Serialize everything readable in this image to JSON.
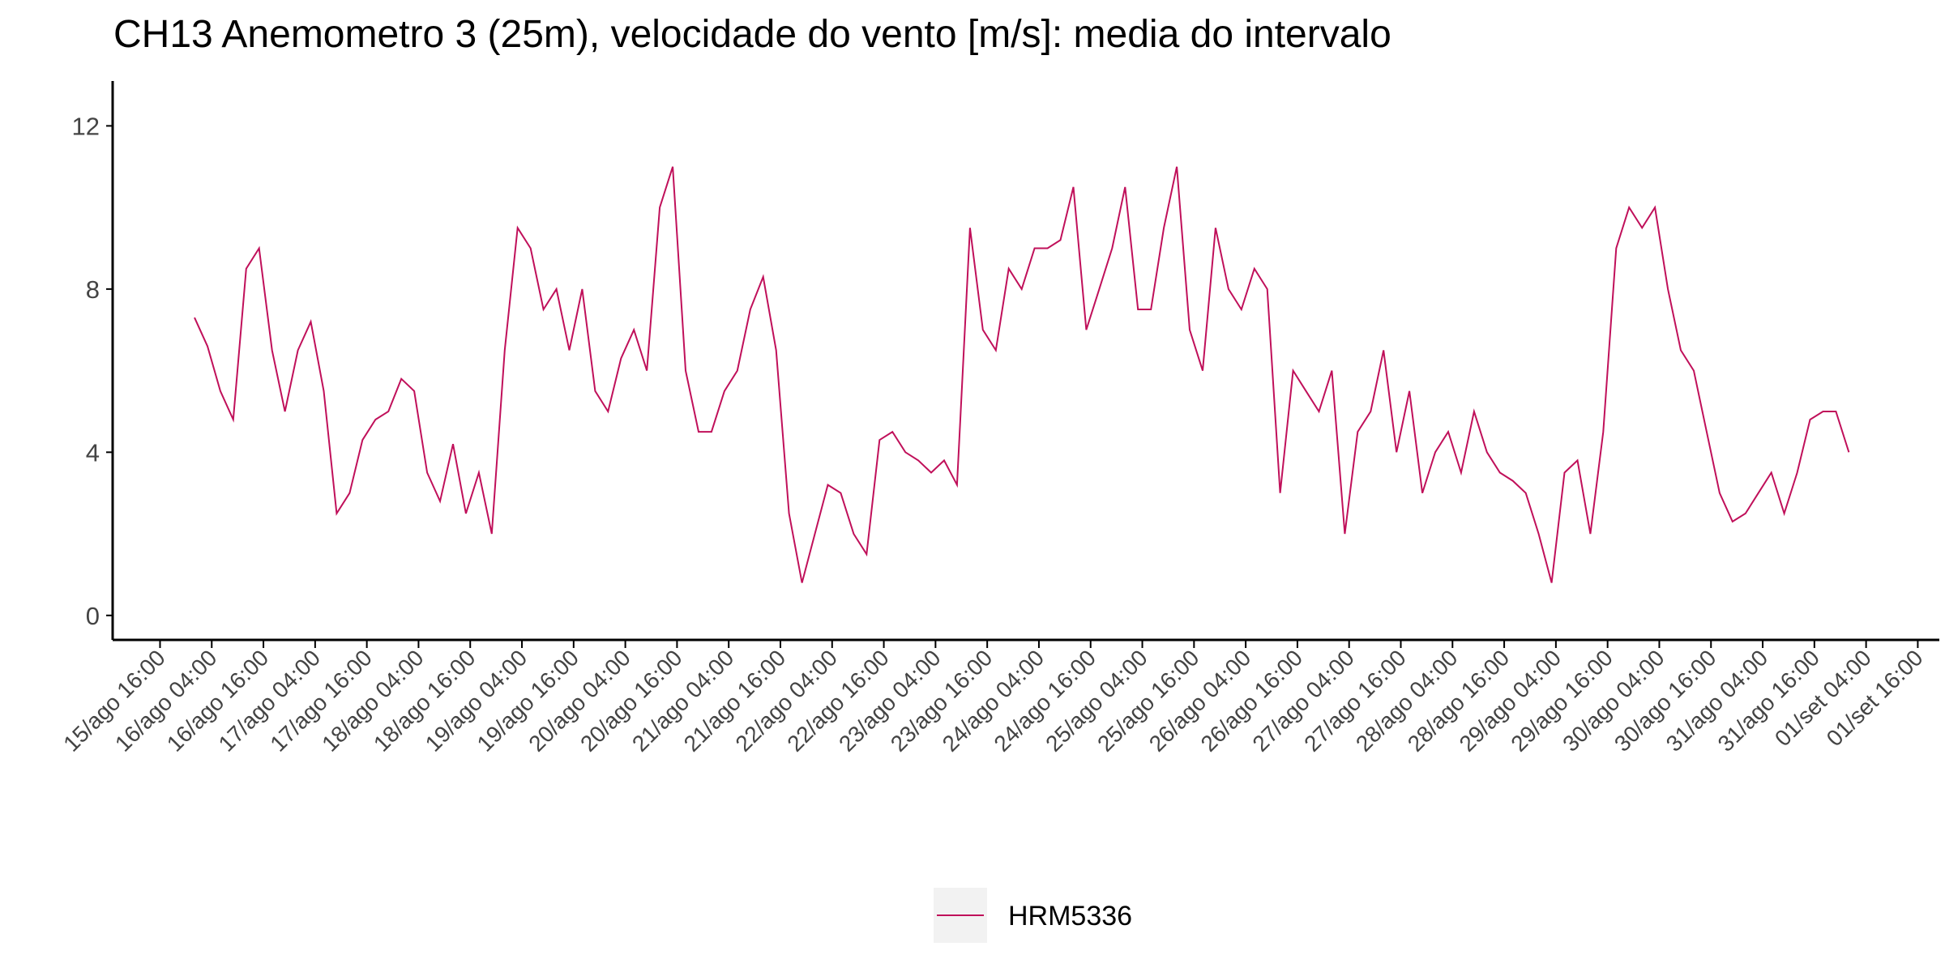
{
  "chart_data": {
    "type": "line",
    "title": "CH13 Anemometro 3 (25m), velocidade do vento [m/s]: media do intervalo",
    "x": [
      "16/ago 00:00",
      "16/ago 03:00",
      "16/ago 06:00",
      "16/ago 09:00",
      "16/ago 12:00",
      "16/ago 15:00",
      "16/ago 18:00",
      "16/ago 21:00",
      "17/ago 00:00",
      "17/ago 03:00",
      "17/ago 06:00",
      "17/ago 09:00",
      "17/ago 12:00",
      "17/ago 15:00",
      "17/ago 18:00",
      "17/ago 21:00",
      "18/ago 00:00",
      "18/ago 03:00",
      "18/ago 06:00",
      "18/ago 09:00",
      "18/ago 12:00",
      "18/ago 15:00",
      "18/ago 18:00",
      "18/ago 21:00",
      "19/ago 00:00",
      "19/ago 03:00",
      "19/ago 06:00",
      "19/ago 09:00",
      "19/ago 12:00",
      "19/ago 15:00",
      "19/ago 18:00",
      "19/ago 21:00",
      "20/ago 00:00",
      "20/ago 03:00",
      "20/ago 06:00",
      "20/ago 09:00",
      "20/ago 12:00",
      "20/ago 15:00",
      "20/ago 18:00",
      "20/ago 21:00",
      "21/ago 00:00",
      "21/ago 03:00",
      "21/ago 06:00",
      "21/ago 09:00",
      "21/ago 12:00",
      "21/ago 15:00",
      "21/ago 18:00",
      "21/ago 21:00",
      "22/ago 00:00",
      "22/ago 03:00",
      "22/ago 06:00",
      "22/ago 09:00",
      "22/ago 12:00",
      "22/ago 15:00",
      "22/ago 18:00",
      "22/ago 21:00",
      "23/ago 00:00",
      "23/ago 03:00",
      "23/ago 06:00",
      "23/ago 09:00",
      "23/ago 12:00",
      "23/ago 15:00",
      "23/ago 18:00",
      "23/ago 21:00",
      "24/ago 00:00",
      "24/ago 03:00",
      "24/ago 06:00",
      "24/ago 09:00",
      "24/ago 12:00",
      "24/ago 15:00",
      "24/ago 18:00",
      "24/ago 21:00",
      "25/ago 00:00",
      "25/ago 03:00",
      "25/ago 06:00",
      "25/ago 09:00",
      "25/ago 12:00",
      "25/ago 15:00",
      "25/ago 18:00",
      "25/ago 21:00",
      "26/ago 00:00",
      "26/ago 03:00",
      "26/ago 06:00",
      "26/ago 09:00",
      "26/ago 12:00",
      "26/ago 15:00",
      "26/ago 18:00",
      "26/ago 21:00",
      "27/ago 00:00",
      "27/ago 03:00",
      "27/ago 06:00",
      "27/ago 09:00",
      "27/ago 12:00",
      "27/ago 15:00",
      "27/ago 18:00",
      "27/ago 21:00",
      "28/ago 00:00",
      "28/ago 03:00",
      "28/ago 06:00",
      "28/ago 09:00",
      "28/ago 12:00",
      "28/ago 15:00",
      "28/ago 18:00",
      "28/ago 21:00",
      "29/ago 00:00",
      "29/ago 03:00",
      "29/ago 06:00",
      "29/ago 09:00",
      "29/ago 12:00",
      "29/ago 15:00",
      "29/ago 18:00",
      "29/ago 21:00",
      "30/ago 00:00",
      "30/ago 03:00",
      "30/ago 06:00",
      "30/ago 09:00",
      "30/ago 12:00",
      "30/ago 15:00",
      "30/ago 18:00",
      "30/ago 21:00",
      "31/ago 00:00",
      "31/ago 03:00",
      "31/ago 06:00",
      "31/ago 09:00",
      "31/ago 12:00",
      "31/ago 15:00",
      "31/ago 18:00",
      "31/ago 21:00",
      "01/set 00:00"
    ],
    "series": [
      {
        "name": "HRM5336",
        "color": "#c0105a",
        "values": [
          7.3,
          6.6,
          5.5,
          4.8,
          8.5,
          9.0,
          6.5,
          5.0,
          6.5,
          7.2,
          5.5,
          2.5,
          3.0,
          4.3,
          4.8,
          5.0,
          5.8,
          5.5,
          3.5,
          2.8,
          4.2,
          2.5,
          3.5,
          2.0,
          6.5,
          9.5,
          9.0,
          7.5,
          8.0,
          6.5,
          8.0,
          5.5,
          5.0,
          6.3,
          7.0,
          6.0,
          10.0,
          11.0,
          6.0,
          4.5,
          4.5,
          5.5,
          6.0,
          7.5,
          8.3,
          6.5,
          2.5,
          0.8,
          2.0,
          3.2,
          3.0,
          2.0,
          1.5,
          4.3,
          4.5,
          4.0,
          3.8,
          3.5,
          3.8,
          3.2,
          9.5,
          7.0,
          6.5,
          8.5,
          8.0,
          9.0,
          9.0,
          9.2,
          10.5,
          7.0,
          8.0,
          9.0,
          10.5,
          7.5,
          7.5,
          9.5,
          11.0,
          7.0,
          6.0,
          9.5,
          8.0,
          7.5,
          8.5,
          8.0,
          3.0,
          6.0,
          5.5,
          5.0,
          6.0,
          2.0,
          4.5,
          5.0,
          6.5,
          4.0,
          5.5,
          3.0,
          4.0,
          4.5,
          3.5,
          5.0,
          4.0,
          3.5,
          3.3,
          3.0,
          2.0,
          0.8,
          3.5,
          3.8,
          2.0,
          4.5,
          9.0,
          10.0,
          9.5,
          10.0,
          8.0,
          6.5,
          6.0,
          4.5,
          3.0,
          2.3,
          2.5,
          3.0,
          3.5,
          2.5,
          3.5,
          4.8,
          5.0,
          5.0,
          4.0
        ]
      }
    ],
    "xlim": [
      "15/ago 05:00",
      "01/set 21:00"
    ],
    "xticks": [
      "15/ago 16:00",
      "16/ago 04:00",
      "16/ago 16:00",
      "17/ago 04:00",
      "17/ago 16:00",
      "18/ago 04:00",
      "18/ago 16:00",
      "19/ago 04:00",
      "19/ago 16:00",
      "20/ago 04:00",
      "20/ago 16:00",
      "21/ago 04:00",
      "21/ago 16:00",
      "22/ago 04:00",
      "22/ago 16:00",
      "23/ago 04:00",
      "23/ago 16:00",
      "24/ago 04:00",
      "24/ago 16:00",
      "25/ago 04:00",
      "25/ago 16:00",
      "26/ago 04:00",
      "26/ago 16:00",
      "27/ago 04:00",
      "27/ago 16:00",
      "28/ago 04:00",
      "28/ago 16:00",
      "29/ago 04:00",
      "29/ago 16:00",
      "30/ago 04:00",
      "30/ago 16:00",
      "31/ago 04:00",
      "31/ago 16:00",
      "01/set 04:00",
      "01/set 16:00"
    ],
    "ylim": [
      -0.6,
      13.1
    ],
    "yticks": [
      0,
      4,
      8,
      12
    ],
    "grid": false,
    "legend": "bottom"
  }
}
